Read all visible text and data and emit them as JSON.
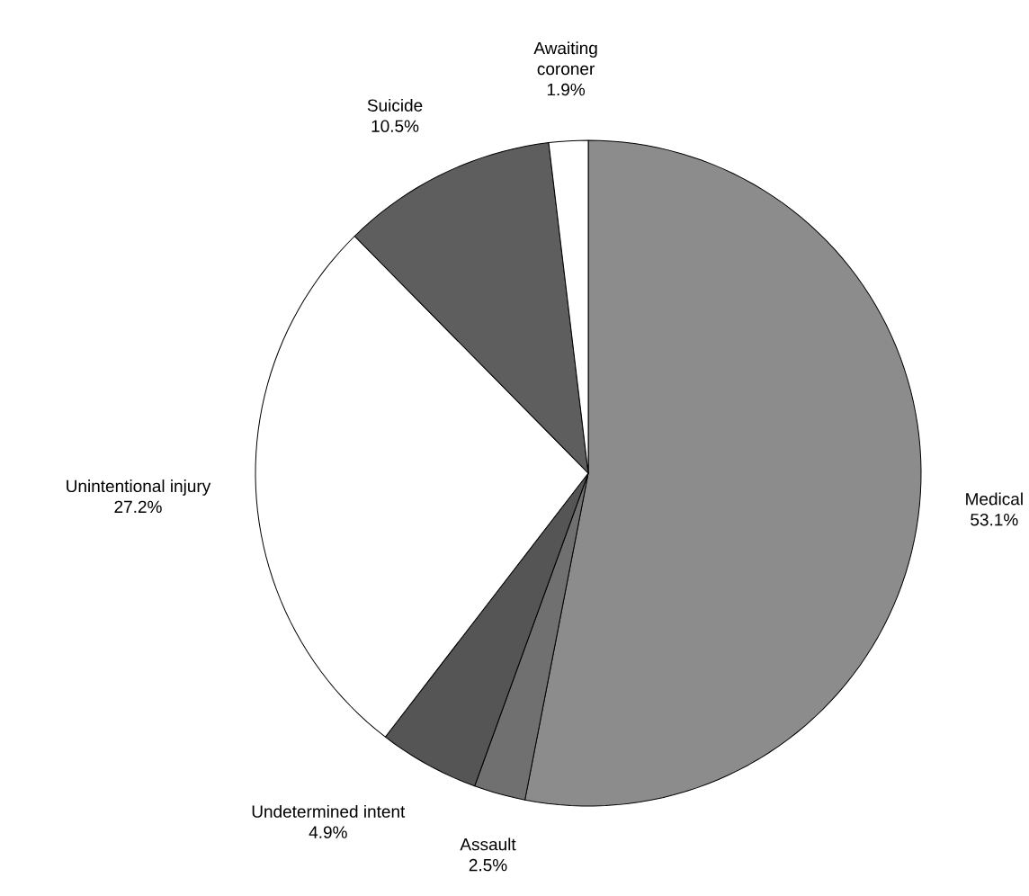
{
  "chart_data": {
    "type": "pie",
    "categories": [
      "Medical",
      "Assault",
      "Undetermined intent",
      "Unintentional injury",
      "Suicide",
      "Awaiting coroner"
    ],
    "values": [
      53.1,
      2.5,
      4.9,
      27.2,
      10.5,
      1.9
    ],
    "value_labels": [
      "53.1%",
      "2.5%",
      "4.9%",
      "27.2%",
      "10.5%",
      "1.9%"
    ],
    "colors": [
      "#8c8c8c",
      "#707070",
      "#555555",
      "#ffffff",
      "#5e5e5e",
      "#ffffff"
    ]
  }
}
